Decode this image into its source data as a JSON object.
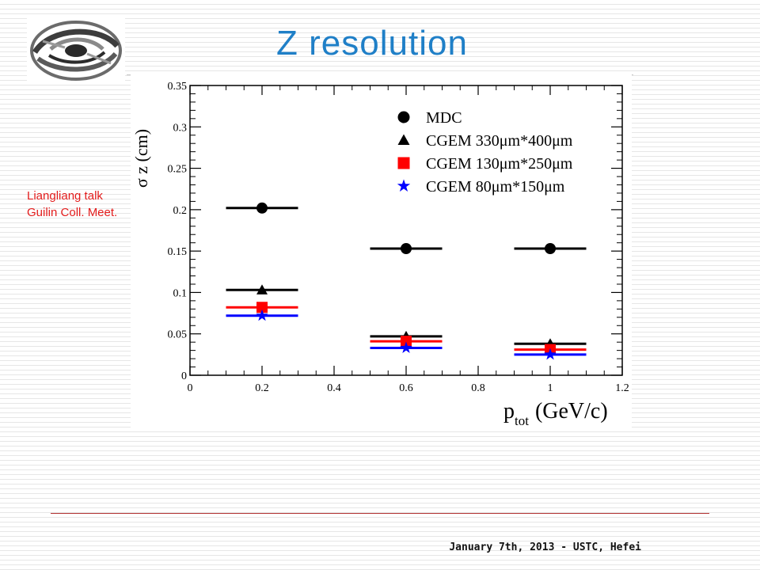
{
  "slide": {
    "title": "Z resolution",
    "side_note_lines": [
      "Liangliang talk",
      "Guilin Coll. Meet."
    ],
    "footer": "January 7th, 2013 - USTC, Hefei"
  },
  "colors": {
    "title": "#1f7fc7",
    "note": "#e31c1c",
    "footer_rule": "#b33333"
  },
  "logo": {
    "icon": "institute-swirl-logo"
  },
  "chart_data": {
    "type": "scatter",
    "ylabel": "σ z (cm)",
    "xlabel_main": "p",
    "xlabel_sub": "tot",
    "xlabel_unit": "(GeV/c)",
    "xlim": [
      0,
      1.2
    ],
    "ylim": [
      0,
      0.35
    ],
    "x_ticks": [
      "0",
      "0.2",
      "0.4",
      "0.6",
      "0.8",
      "1",
      "1.2"
    ],
    "y_ticks": [
      "0",
      "0.05",
      "0.1",
      "0.15",
      "0.2",
      "0.25",
      "0.3",
      "0.35"
    ],
    "grid": false,
    "legend_position": "top-right",
    "x": [
      0.2,
      0.6,
      1.0
    ],
    "x_error": 0.1,
    "series": [
      {
        "name": "MDC",
        "marker": "circle",
        "color": "#000000",
        "values": [
          0.202,
          0.153,
          0.153
        ]
      },
      {
        "name": "CGEM 330μm*400μm",
        "marker": "triangle",
        "color": "#000000",
        "values": [
          0.103,
          0.047,
          0.038
        ]
      },
      {
        "name": "CGEM 130μm*250μm",
        "marker": "square",
        "color": "#ff0000",
        "values": [
          0.082,
          0.041,
          0.031
        ]
      },
      {
        "name": "CGEM 80μm*150μm",
        "marker": "star",
        "color": "#0000ff",
        "values": [
          0.072,
          0.033,
          0.025
        ]
      }
    ]
  }
}
